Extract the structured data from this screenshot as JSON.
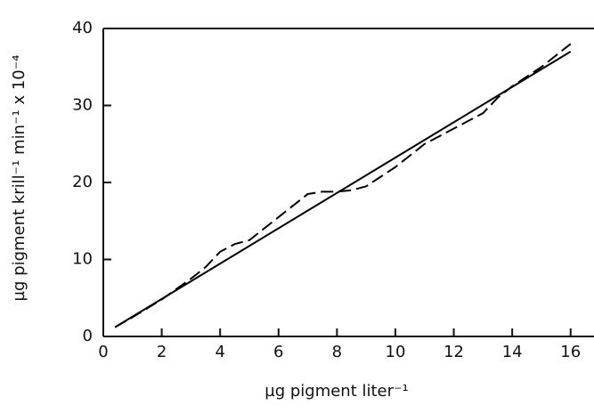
{
  "chart_data": {
    "type": "line",
    "xlabel": "µg pigment liter⁻¹",
    "ylabel": "µg pigment krill⁻¹ min⁻¹ x 10⁻⁴",
    "xlim": [
      0,
      16.8
    ],
    "ylim": [
      0,
      40
    ],
    "xticks": [
      0,
      2,
      4,
      6,
      8,
      10,
      12,
      14,
      16
    ],
    "yticks": [
      0,
      10,
      20,
      30,
      40
    ],
    "series": [
      {
        "color": "#000000",
        "style": "solid",
        "x": [
          0.4,
          16
        ],
        "values": [
          1.2,
          37
        ]
      },
      {
        "color": "#000000",
        "style": "dashed",
        "x": [
          0.4,
          1,
          2,
          3,
          3.5,
          4,
          4.5,
          5,
          5.5,
          6,
          6.5,
          7,
          7.5,
          8,
          8.5,
          9,
          10,
          11,
          12,
          13,
          13.5,
          14,
          15,
          16
        ],
        "values": [
          1.2,
          2.5,
          4.8,
          7.5,
          9,
          11,
          12,
          12.5,
          14,
          15.5,
          17,
          18.5,
          18.8,
          18.8,
          19,
          19.5,
          22,
          25,
          27,
          29,
          31,
          32.5,
          35,
          38
        ]
      }
    ]
  }
}
